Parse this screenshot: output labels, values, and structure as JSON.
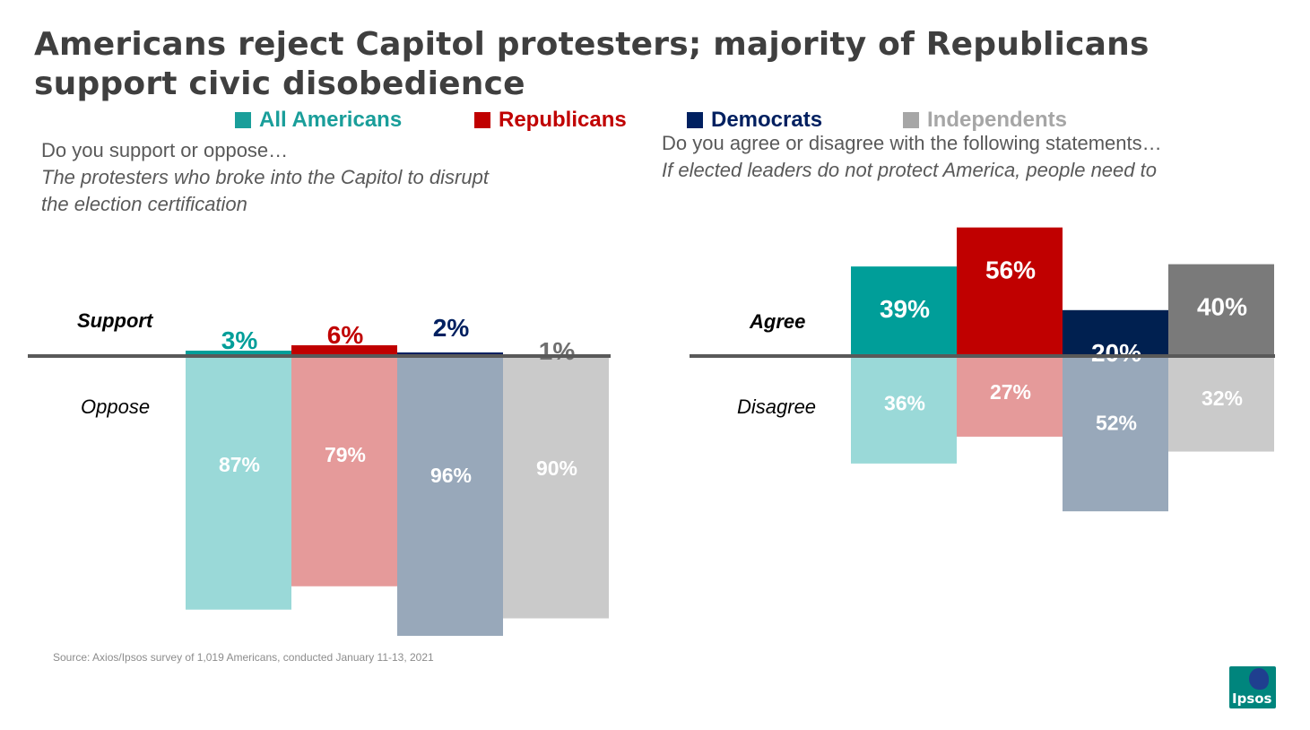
{
  "title": {
    "line1": "Americans reject Capitol protesters; majority of Republicans",
    "line2": "support civic disobedience"
  },
  "legend": [
    {
      "label": "All Americans",
      "color": "#1a9e9a"
    },
    {
      "label": "Republicans",
      "color": "#c00000"
    },
    {
      "label": "Democrats",
      "color": "#002060"
    },
    {
      "label": "Independents",
      "color": "#a6a6a6"
    }
  ],
  "left_question": {
    "prompt": "Do you support or oppose…",
    "statement_line1": "The protesters who broke into the Capitol to disrupt",
    "statement_line2": "the election certification"
  },
  "right_question": {
    "prompt": "Do you agree or disagree with the following statements…",
    "statement": "If elected leaders do not protect America, people need to"
  },
  "source": "Source: Axios/Ipsos survey of 1,019 Americans, conducted January 11-13, 2021",
  "logo_text": "Ipsos",
  "chart_data": [
    {
      "type": "bar",
      "title": "Do you support or oppose… The protesters who broke into the Capitol to disrupt the election certification",
      "categories": [
        "All Americans",
        "Republicans",
        "Democrats",
        "Independents"
      ],
      "series": [
        {
          "name": "Support",
          "values": [
            3,
            6,
            2,
            1
          ],
          "labels": [
            "3%",
            "6%",
            "2%",
            "1%"
          ],
          "colors": [
            "#009e99",
            "#c00000",
            "#002060",
            "#6f6f6f"
          ]
        },
        {
          "name": "Oppose",
          "values": [
            87,
            79,
            96,
            90
          ],
          "labels": [
            "87%",
            "79%",
            "96%",
            "90%"
          ],
          "colors": [
            "#9ad9d8",
            "#e59a9a",
            "#98a8ba",
            "#cacaca"
          ]
        }
      ],
      "up_label": "Support",
      "down_label": "Oppose"
    },
    {
      "type": "bar",
      "title": "Do you agree or disagree with the following statements… If elected leaders do not protect America, people need to",
      "categories": [
        "All Americans",
        "Republicans",
        "Democrats",
        "Independents"
      ],
      "series": [
        {
          "name": "Agree",
          "values": [
            39,
            56,
            20,
            40
          ],
          "labels": [
            "39%",
            "56%",
            "20%",
            "40%"
          ],
          "colors": [
            "#009e99",
            "#c00000",
            "#002050",
            "#7a7a7a"
          ]
        },
        {
          "name": "Disagree",
          "values": [
            36,
            27,
            52,
            32
          ],
          "labels": [
            "36%",
            "27%",
            "52%",
            "32%"
          ],
          "colors": [
            "#9ad9d8",
            "#e59a9a",
            "#98a8ba",
            "#cacaca"
          ]
        }
      ],
      "up_label": "Agree",
      "down_label": "Disagree"
    }
  ]
}
